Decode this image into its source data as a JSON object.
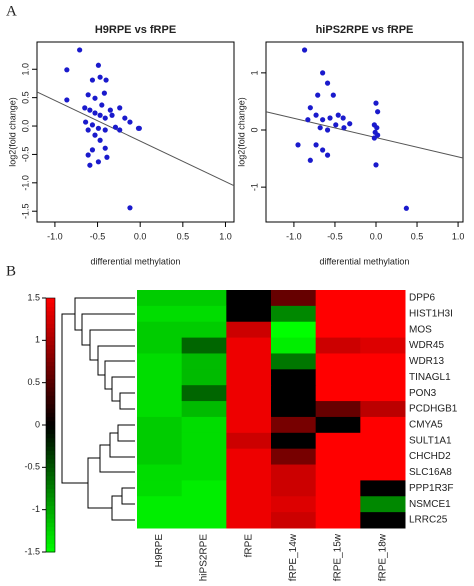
{
  "panels": [
    "A",
    "B"
  ],
  "chart_data": [
    {
      "type": "scatter",
      "title": "H9RPE vs fRPE",
      "xlabel": "differential methylation",
      "ylabel": "log2(fold change)",
      "color": "#1a1acc",
      "x": [
        -0.71,
        -0.86,
        -0.86,
        -0.49,
        -0.47,
        -0.56,
        -0.4,
        -0.61,
        -0.53,
        -0.42,
        -0.65,
        -0.59,
        -0.45,
        -0.35,
        -0.24,
        -0.53,
        -0.47,
        -0.41,
        -0.33,
        -0.64,
        -0.56,
        -0.49,
        -0.41,
        -0.61,
        -0.53,
        -0.18,
        -0.12,
        -0.02,
        -0.01,
        -0.29,
        -0.24,
        -0.47,
        -0.56,
        -0.61,
        -0.41,
        -0.39,
        -0.59,
        -0.49,
        -0.12
      ],
      "values": [
        1.34,
        0.99,
        0.46,
        1.07,
        0.86,
        0.81,
        0.81,
        0.55,
        0.49,
        0.58,
        0.32,
        0.28,
        0.37,
        0.28,
        0.32,
        0.23,
        0.19,
        0.14,
        0.19,
        0.07,
        0.02,
        -0.04,
        -0.07,
        -0.07,
        -0.16,
        0.14,
        0.07,
        -0.04,
        -0.04,
        -0.02,
        -0.07,
        -0.25,
        -0.42,
        -0.51,
        -0.39,
        -0.55,
        -0.69,
        -0.63,
        -1.44
      ],
      "fit_line": {
        "x": [
          -1.21,
          1.1
        ],
        "values": [
          0.6,
          -1.05
        ],
        "color": "#555555"
      },
      "xlim": [
        -1.21,
        1.1
      ],
      "ylim": [
        -1.69,
        1.48
      ],
      "xticks": [
        {
          "value": -1,
          "label": "-1.0"
        },
        -0.5,
        {
          "value": 0,
          "label": "0.0"
        },
        0.5,
        {
          "value": 1,
          "label": "1.0"
        }
      ],
      "yticks": [
        -1.5,
        {
          "value": -1,
          "label": "-1.0"
        },
        -0.5,
        {
          "value": 0,
          "label": "0.0"
        },
        0.5,
        {
          "value": 1,
          "label": "1.0"
        }
      ]
    },
    {
      "type": "scatter",
      "title": "hiPS2RPE vs fRPE",
      "xlabel": "differential methylation",
      "ylabel": "log2(fold change)",
      "color": "#1a1acc",
      "x": [
        -0.87,
        -0.65,
        -0.59,
        -0.71,
        -0.52,
        -0.8,
        -0.73,
        -0.65,
        -0.56,
        -0.46,
        -0.4,
        -0.83,
        -0.68,
        -0.59,
        -0.49,
        -0.39,
        -0.32,
        -0.95,
        -0.73,
        -0.65,
        -0.8,
        -0.59,
        0,
        0.02,
        -0.02,
        0.01,
        -0.01,
        0.02,
        -0.02,
        0,
        0.37
      ],
      "values": [
        1.4,
        1.0,
        0.82,
        0.61,
        0.61,
        0.39,
        0.26,
        0.18,
        0.21,
        0.26,
        0.21,
        0.18,
        0.04,
        0,
        0.09,
        0.04,
        0.11,
        -0.26,
        -0.26,
        -0.35,
        -0.53,
        -0.44,
        0.47,
        0.32,
        0.09,
        0.04,
        -0.04,
        -0.09,
        -0.14,
        -0.61,
        -1.37
      ],
      "fit_line": {
        "x": [
          -1.34,
          1.06
        ],
        "values": [
          0.32,
          -0.49
        ],
        "color": "#555555"
      },
      "xlim": [
        -1.34,
        1.06
      ],
      "ylim": [
        -1.61,
        1.54
      ],
      "xticks": [
        {
          "value": -1,
          "label": "-1.0"
        },
        -0.5,
        {
          "value": 0,
          "label": "0.0"
        },
        0.5,
        {
          "value": 1,
          "label": "1.0"
        }
      ],
      "yticks": [
        -1,
        0,
        1
      ]
    },
    {
      "type": "heatmap",
      "rows": [
        "DPP6",
        "HIST1H3I",
        "MOS",
        "WDR45",
        "WDR13",
        "TINAGL1",
        "PON3",
        "PCDHGB1",
        "CMYA5",
        "SULT1A1",
        "CHCHD2",
        "SLC16A8",
        "PPP1R3F",
        "NSMCE1",
        "LRRC25"
      ],
      "columns": [
        "H9RPE",
        "hiPS2RPE",
        "fRPE",
        "fRPE_14w",
        "fRPE_15w",
        "fRPE_18w"
      ],
      "values": [
        [
          -1.2,
          -1.2,
          0,
          0.6,
          1.5,
          1.5
        ],
        [
          -1.3,
          -1.3,
          0,
          -0.8,
          1.5,
          1.5
        ],
        [
          -1.2,
          -1.2,
          1.2,
          -1.5,
          1.5,
          1.5
        ],
        [
          -1.2,
          -0.6,
          1.4,
          -1.4,
          1.2,
          1.3
        ],
        [
          -1.3,
          -1.1,
          1.4,
          -0.7,
          1.5,
          1.5
        ],
        [
          -1.3,
          -1.1,
          1.4,
          0,
          1.5,
          1.5
        ],
        [
          -1.3,
          -0.6,
          1.4,
          0,
          1.5,
          1.5
        ],
        [
          -1.3,
          -1.1,
          1.4,
          0,
          0.6,
          1.1
        ],
        [
          -1.2,
          -1.3,
          1.4,
          0.7,
          0,
          1.5
        ],
        [
          -1.2,
          -1.3,
          1.2,
          0,
          1.5,
          1.5
        ],
        [
          -1.2,
          -1.3,
          1.4,
          0.7,
          1.5,
          1.5
        ],
        [
          -1.3,
          -1.3,
          1.4,
          1.2,
          1.5,
          1.5
        ],
        [
          -1.3,
          -1.4,
          1.4,
          1.2,
          1.5,
          0
        ],
        [
          -1.4,
          -1.4,
          1.4,
          1.3,
          1.5,
          -0.8
        ],
        [
          -1.4,
          -1.4,
          1.4,
          1.2,
          1.5,
          0
        ]
      ],
      "low_color": "#00ff00",
      "mid_color": "#000000",
      "high_color": "#ff0000",
      "colorbar": {
        "lim": [
          -1.5,
          1.5
        ],
        "ticks": [
          1.5,
          1,
          0.5,
          0,
          -0.5,
          -1,
          -1.5
        ]
      }
    }
  ]
}
